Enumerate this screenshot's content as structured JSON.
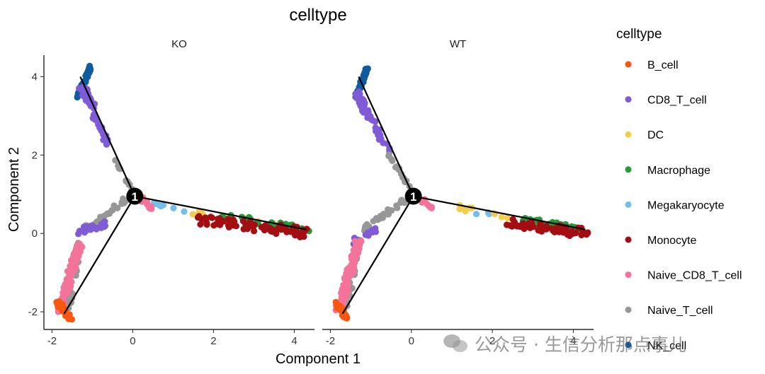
{
  "chart_data": {
    "type": "scatter",
    "title": "celltype",
    "xlabel": "Component 1",
    "ylabel": "Component 2",
    "xlim": [
      -2.2,
      4.5
    ],
    "ylim": [
      -2.45,
      4.55
    ],
    "x_ticks": [
      -2,
      0,
      2,
      4
    ],
    "y_ticks": [
      -2,
      0,
      2,
      4
    ],
    "grid": false,
    "legend_title": "celltype",
    "legend_position": "right",
    "branch_point_label": "1",
    "branch_point": [
      0.05,
      0.95
    ],
    "trajectory": [
      [
        [
          0.05,
          0.95
        ],
        [
          -1.3,
          4.0
        ]
      ],
      [
        [
          0.05,
          0.95
        ],
        [
          4.3,
          0.1
        ]
      ],
      [
        [
          0.05,
          0.95
        ],
        [
          -1.7,
          -2.05
        ]
      ]
    ],
    "legend": [
      {
        "label": "B_cell",
        "color": "#F8570F"
      },
      {
        "label": "CD8_T_cell",
        "color": "#7F5BD6"
      },
      {
        "label": "DC",
        "color": "#F2CE4F"
      },
      {
        "label": "Macrophage",
        "color": "#259A3A"
      },
      {
        "label": "Megakaryocyte",
        "color": "#72BEEA"
      },
      {
        "label": "Monocyte",
        "color": "#A30E12"
      },
      {
        "label": "Naive_CD8_T_cell",
        "color": "#F4739A"
      },
      {
        "label": "Naive_T_cell",
        "color": "#979797"
      },
      {
        "label": "NK_cell",
        "color": "#0F5BA0"
      }
    ],
    "panels": [
      {
        "name": "KO",
        "clusters": [
          {
            "celltype": "NK_cell",
            "x": [
              -1.35,
              -1.05
            ],
            "y": [
              3.5,
              4.25
            ],
            "n": 60,
            "jitter": 0.03
          },
          {
            "celltype": "CD8_T_cell",
            "x": [
              -1.3,
              -1.0
            ],
            "y": [
              3.8,
              3.2
            ],
            "n": 45,
            "jitter": 0.07
          },
          {
            "celltype": "CD8_T_cell",
            "x": [
              -1.0,
              -0.6
            ],
            "y": [
              3.1,
              2.2
            ],
            "n": 22,
            "jitter": 0.05
          },
          {
            "celltype": "Naive_T_cell",
            "x": [
              -0.55,
              0.05
            ],
            "y": [
              2.0,
              1.0
            ],
            "n": 14,
            "jitter": 0.03
          },
          {
            "celltype": "Naive_T_cell",
            "x": [
              -0.1,
              -1.2
            ],
            "y": [
              0.9,
              0.1
            ],
            "n": 28,
            "jitter": 0.05
          },
          {
            "celltype": "CD8_T_cell",
            "x": [
              -0.7,
              -1.35
            ],
            "y": [
              0.25,
              0.05
            ],
            "n": 24,
            "jitter": 0.06
          },
          {
            "celltype": "Naive_T_cell",
            "x": [
              -1.3,
              -1.6
            ],
            "y": [
              -0.05,
              -1.9
            ],
            "n": 40,
            "jitter": 0.06
          },
          {
            "celltype": "Naive_CD8_T_cell",
            "x": [
              -1.3,
              -1.8
            ],
            "y": [
              -0.2,
              -1.95
            ],
            "n": 95,
            "jitter": 0.08
          },
          {
            "celltype": "B_cell",
            "x": [
              -1.85,
              -1.55
            ],
            "y": [
              -1.8,
              -2.15
            ],
            "n": 30,
            "jitter": 0.05
          },
          {
            "celltype": "Megakaryocyte",
            "x": [
              0.3,
              1.3
            ],
            "y": [
              0.85,
              0.5
            ],
            "n": 8,
            "jitter": 0.04
          },
          {
            "celltype": "Naive_CD8_T_cell",
            "x": [
              0.2,
              0.5
            ],
            "y": [
              0.9,
              0.65
            ],
            "n": 10,
            "jitter": 0.05
          },
          {
            "celltype": "DC",
            "x": [
              1.4,
              3.6
            ],
            "y": [
              0.55,
              0.2
            ],
            "n": 12,
            "jitter": 0.05
          },
          {
            "celltype": "Macrophage",
            "x": [
              2.2,
              4.3
            ],
            "y": [
              0.45,
              0.1
            ],
            "n": 26,
            "jitter": 0.07
          },
          {
            "celltype": "Monocyte",
            "x": [
              1.6,
              4.3
            ],
            "y": [
              0.35,
              0.02
            ],
            "n": 80,
            "jitter": 0.1
          }
        ]
      },
      {
        "name": "WT",
        "clusters": [
          {
            "celltype": "NK_cell",
            "x": [
              -1.35,
              -1.1
            ],
            "y": [
              3.5,
              4.2
            ],
            "n": 55,
            "jitter": 0.03
          },
          {
            "celltype": "CD8_T_cell",
            "x": [
              -1.35,
              -1.05
            ],
            "y": [
              3.6,
              3.0
            ],
            "n": 45,
            "jitter": 0.07
          },
          {
            "celltype": "CD8_T_cell",
            "x": [
              -1.05,
              -0.55
            ],
            "y": [
              3.0,
              2.1
            ],
            "n": 18,
            "jitter": 0.05
          },
          {
            "celltype": "Naive_T_cell",
            "x": [
              -0.55,
              0.05
            ],
            "y": [
              2.0,
              1.0
            ],
            "n": 18,
            "jitter": 0.03
          },
          {
            "celltype": "Naive_T_cell",
            "x": [
              -0.1,
              -1.2
            ],
            "y": [
              0.9,
              0.1
            ],
            "n": 30,
            "jitter": 0.05
          },
          {
            "celltype": "CD8_T_cell",
            "x": [
              -0.9,
              -1.4
            ],
            "y": [
              0.1,
              -0.2
            ],
            "n": 14,
            "jitter": 0.06
          },
          {
            "celltype": "Naive_T_cell",
            "x": [
              -1.3,
              -1.6
            ],
            "y": [
              -0.1,
              -1.9
            ],
            "n": 38,
            "jitter": 0.06
          },
          {
            "celltype": "Naive_CD8_T_cell",
            "x": [
              -1.3,
              -1.8
            ],
            "y": [
              -0.2,
              -1.95
            ],
            "n": 95,
            "jitter": 0.08
          },
          {
            "celltype": "B_cell",
            "x": [
              -1.85,
              -1.6
            ],
            "y": [
              -1.8,
              -2.15
            ],
            "n": 30,
            "jitter": 0.05
          },
          {
            "celltype": "Naive_CD8_T_cell",
            "x": [
              0.2,
              0.6
            ],
            "y": [
              0.9,
              0.65
            ],
            "n": 10,
            "jitter": 0.05
          },
          {
            "celltype": "Megakaryocyte",
            "x": [
              1.5,
              2.3
            ],
            "y": [
              0.55,
              0.45
            ],
            "n": 4,
            "jitter": 0.04
          },
          {
            "celltype": "DC",
            "x": [
              0.8,
              3.6
            ],
            "y": [
              0.75,
              0.15
            ],
            "n": 12,
            "jitter": 0.05
          },
          {
            "celltype": "Macrophage",
            "x": [
              2.6,
              4.3
            ],
            "y": [
              0.35,
              0.1
            ],
            "n": 30,
            "jitter": 0.07
          },
          {
            "celltype": "Monocyte",
            "x": [
              2.3,
              4.3
            ],
            "y": [
              0.3,
              0.0
            ],
            "n": 60,
            "jitter": 0.09
          }
        ]
      }
    ]
  },
  "watermark": {
    "icon": "wechat-icon",
    "text": "公众号 · 生信分析那点事儿"
  }
}
